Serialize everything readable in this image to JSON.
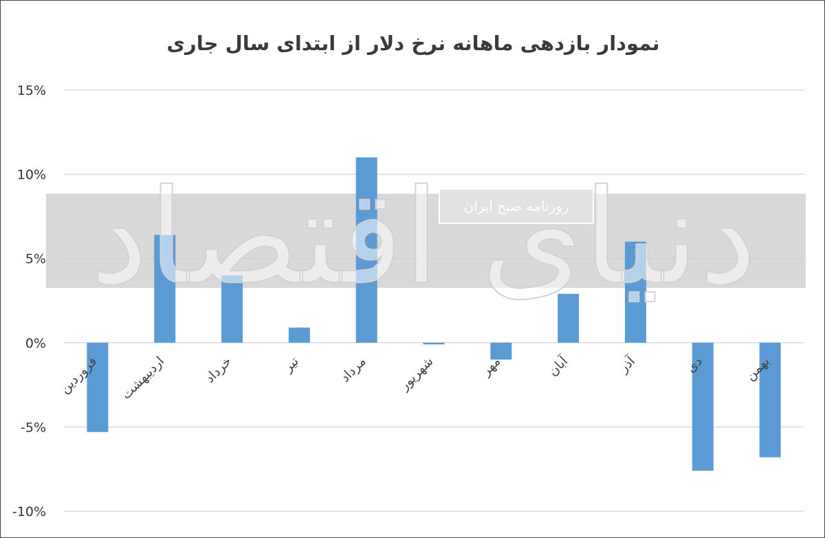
{
  "chart_data": {
    "type": "bar",
    "title": "نمودار بازدهی ماهانه نرخ دلار از ابتدای سال جاری",
    "xlabel": "",
    "ylabel": "",
    "ylim": [
      -10,
      15
    ],
    "yticks": [
      15,
      10,
      5,
      0,
      -5,
      -10
    ],
    "ytick_labels": [
      "15%",
      "10%",
      "5%",
      "0%",
      "-5%",
      "-10%"
    ],
    "grid": true,
    "categories": [
      "فروردین",
      "اردیبهشت",
      "خرداد",
      "تیر",
      "مرداد",
      "شهریور",
      "مهر",
      "آبان",
      "آذر",
      "دی",
      "بهمن"
    ],
    "values": [
      -5.3,
      6.4,
      4.0,
      0.9,
      11.0,
      -0.1,
      -1.0,
      2.9,
      6.0,
      -7.6,
      -6.8
    ],
    "bar_color": "#5b9bd5"
  },
  "watermark": {
    "logo_text": "دنیای اقتصاد",
    "stamp_text": "روزنامه صبح ایران"
  }
}
